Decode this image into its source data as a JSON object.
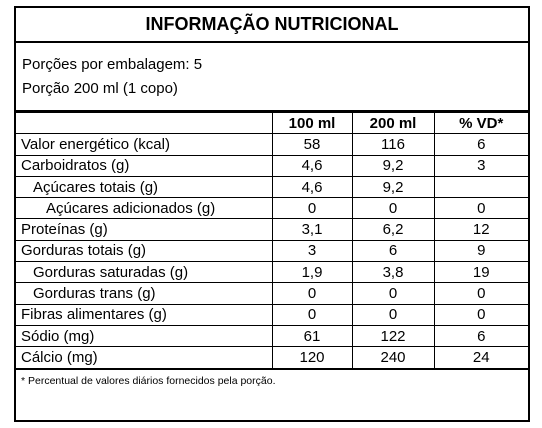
{
  "label": {
    "title": "INFORMAÇÃO NUTRICIONAL",
    "portions": [
      "Porções por embalagem: 5",
      "Porção 200 ml (1 copo)"
    ],
    "columns": [
      "100 ml",
      "200 ml",
      "% VD*"
    ],
    "rows": [
      [
        "Valor energético (kcal)",
        "58",
        "116",
        "6"
      ],
      [
        "Carboidratos (g)",
        "4,6",
        "9,2",
        "3"
      ],
      [
        "Açúcares totais (g)",
        "4,6",
        "9,2",
        null
      ],
      [
        "Açúcares adicionados (g)",
        "0",
        "0",
        "0"
      ],
      [
        "Proteínas (g)",
        "3,1",
        "6,2",
        "12"
      ],
      [
        "Gorduras totais (g)",
        "3",
        "6",
        "9"
      ],
      [
        "Gorduras saturadas (g)",
        "1,9",
        "3,8",
        "19"
      ],
      [
        "Gorduras trans (g)",
        "0",
        "0",
        "0"
      ],
      [
        "Fibras alimentares (g)",
        "0",
        "0",
        "0"
      ],
      [
        "Sódio (mg)",
        "61",
        "122",
        "6"
      ],
      [
        "Cálcio (mg)",
        "120",
        "240",
        "24"
      ]
    ],
    "footnote": "* Percentual de valores diários fornecidos pela porção."
  }
}
